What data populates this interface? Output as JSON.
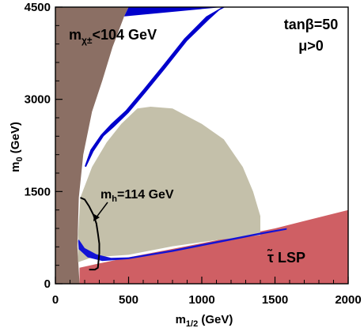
{
  "chart_data": {
    "type": "area",
    "title": "",
    "xlabel": "m_{1/2} (GeV)",
    "ylabel": "m_0 (GeV)",
    "xlim": [
      0,
      2000
    ],
    "ylim": [
      0,
      4500
    ],
    "x_ticks": [
      0,
      500,
      1000,
      1500,
      2000
    ],
    "y_ticks": [
      0,
      1500,
      3000,
      4500
    ],
    "grid": false,
    "legend": "none",
    "annotations": {
      "params_line1": "tanβ=50",
      "params_line2": "μ>0",
      "chargino_label": "m",
      "chargino_sub": "χ±",
      "chargino_rest": "<104 GeV",
      "higgs_label": "m",
      "higgs_sub": "h",
      "higgs_rest": "=114 GeV",
      "lsp_label": "τ̃ LSP"
    },
    "regions": [
      {
        "name": "chargino_excluded",
        "color": "#8b6f64",
        "points": [
          [
            0,
            0
          ],
          [
            165,
            0
          ],
          [
            150,
            600
          ],
          [
            160,
            1400
          ],
          [
            190,
            2100
          ],
          [
            250,
            2800
          ],
          [
            320,
            3300
          ],
          [
            390,
            3850
          ],
          [
            470,
            4350
          ],
          [
            500,
            4500
          ],
          [
            0,
            4500
          ]
        ]
      },
      {
        "name": "stau_lsp",
        "color": "#cf5f64",
        "points": [
          [
            165,
            0
          ],
          [
            2000,
            0
          ],
          [
            2000,
            1200
          ],
          [
            1500,
            900
          ],
          [
            1000,
            660
          ],
          [
            500,
            430
          ],
          [
            300,
            330
          ],
          [
            165,
            260
          ]
        ]
      },
      {
        "name": "higher_preferred",
        "color": "#c4c0aa",
        "points": [
          [
            155,
            350
          ],
          [
            250,
            430
          ],
          [
            500,
            470
          ],
          [
            800,
            610
          ],
          [
            1100,
            710
          ],
          [
            1400,
            790
          ],
          [
            1400,
            1100
          ],
          [
            1350,
            1500
          ],
          [
            1280,
            1900
          ],
          [
            1150,
            2350
          ],
          [
            1000,
            2600
          ],
          [
            800,
            2850
          ],
          [
            650,
            2880
          ],
          [
            560,
            2850
          ],
          [
            450,
            2600
          ],
          [
            350,
            2300
          ],
          [
            250,
            1900
          ],
          [
            170,
            1400
          ],
          [
            155,
            800
          ]
        ]
      },
      {
        "name": "white_no_ewsb",
        "color": "#ffffff",
        "points": [
          [
            500,
            4500
          ],
          [
            1160,
            4500
          ],
          [
            900,
            3900
          ],
          [
            700,
            3300
          ],
          [
            500,
            2750
          ],
          [
            380,
            2600
          ],
          [
            470,
            4350
          ]
        ]
      },
      {
        "name": "wmap_band_upper",
        "color": "#0000cc",
        "points": [
          [
            470,
            4350
          ],
          [
            500,
            4500
          ],
          [
            520,
            4500
          ],
          [
            1160,
            4500
          ],
          [
            1120,
            4450
          ],
          [
            1050,
            4300
          ],
          [
            900,
            3950
          ],
          [
            750,
            3500
          ],
          [
            620,
            3120
          ],
          [
            500,
            2780
          ],
          [
            400,
            2550
          ],
          [
            330,
            2400
          ],
          [
            260,
            2150
          ],
          [
            210,
            1900
          ],
          [
            200,
            1910
          ],
          [
            240,
            2180
          ],
          [
            310,
            2420
          ],
          [
            380,
            2600
          ],
          [
            480,
            2820
          ],
          [
            600,
            3160
          ],
          [
            730,
            3540
          ],
          [
            880,
            3990
          ],
          [
            1030,
            4350
          ],
          [
            1140,
            4500
          ]
        ]
      },
      {
        "name": "wmap_band_lower",
        "color": "#1212d6",
        "points": [
          [
            155,
            700
          ],
          [
            160,
            560
          ],
          [
            220,
            430
          ],
          [
            320,
            370
          ],
          [
            500,
            400
          ],
          [
            800,
            520
          ],
          [
            1100,
            660
          ],
          [
            1400,
            800
          ],
          [
            1580,
            880
          ],
          [
            1580,
            905
          ],
          [
            1400,
            830
          ],
          [
            1100,
            690
          ],
          [
            800,
            550
          ],
          [
            500,
            430
          ],
          [
            380,
            420
          ],
          [
            280,
            480
          ],
          [
            200,
            580
          ],
          [
            160,
            720
          ]
        ]
      }
    ],
    "series": [
      {
        "name": "",
        "type": "line",
        "color": "#000000",
        "x": [
          170,
          200,
          230,
          260,
          280,
          290,
          300,
          300,
          295,
          290,
          270,
          230
        ],
        "y": [
          1400,
          1370,
          1260,
          1120,
          980,
          820,
          650,
          500,
          380,
          260,
          230,
          230
        ]
      }
    ]
  }
}
